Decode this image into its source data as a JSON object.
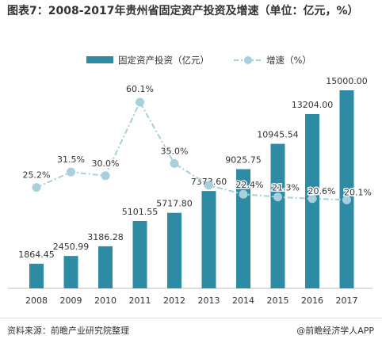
{
  "title": "图表7：2008-2017年贵州省固定资产投资及增速（单位：亿元，%）",
  "source": "资料来源：前瞻产业研究院整理",
  "brand": "@前瞻经济学人APP",
  "colors": {
    "bar": "#2d8ca4",
    "line": "#a8cfdc",
    "marker": "#a8cfdc",
    "axis": "#bbbbbb",
    "text": "#333333"
  },
  "chart_data": {
    "type": "bar",
    "categories": [
      "2008",
      "2009",
      "2010",
      "2011",
      "2012",
      "2013",
      "2014",
      "2015",
      "2016",
      "2017"
    ],
    "series": [
      {
        "name": "固定资产投资（亿元）",
        "type": "bar",
        "values": [
          1864.45,
          2450.99,
          3186.28,
          5101.55,
          5717.8,
          7373.6,
          9025.75,
          10945.54,
          13204.0,
          15000.0
        ],
        "labels": [
          "1864.45",
          "2450.99",
          "3186.28",
          "5101.55",
          "5717.80",
          "7373.60",
          "9025.75",
          "10945.54",
          "13204.00",
          "15000.00"
        ]
      },
      {
        "name": "增速（%）",
        "type": "line",
        "values": [
          25.2,
          31.5,
          30.0,
          60.1,
          35.0,
          26.1,
          22.4,
          21.3,
          20.6,
          20.1
        ],
        "labels": [
          "25.2%",
          "31.5%",
          "30.0%",
          "60.1%",
          "35.0%",
          "",
          "22.4%",
          "21.3%",
          "20.6%",
          "20.1%"
        ]
      }
    ],
    "legend_position": "top-center",
    "grid": false
  }
}
